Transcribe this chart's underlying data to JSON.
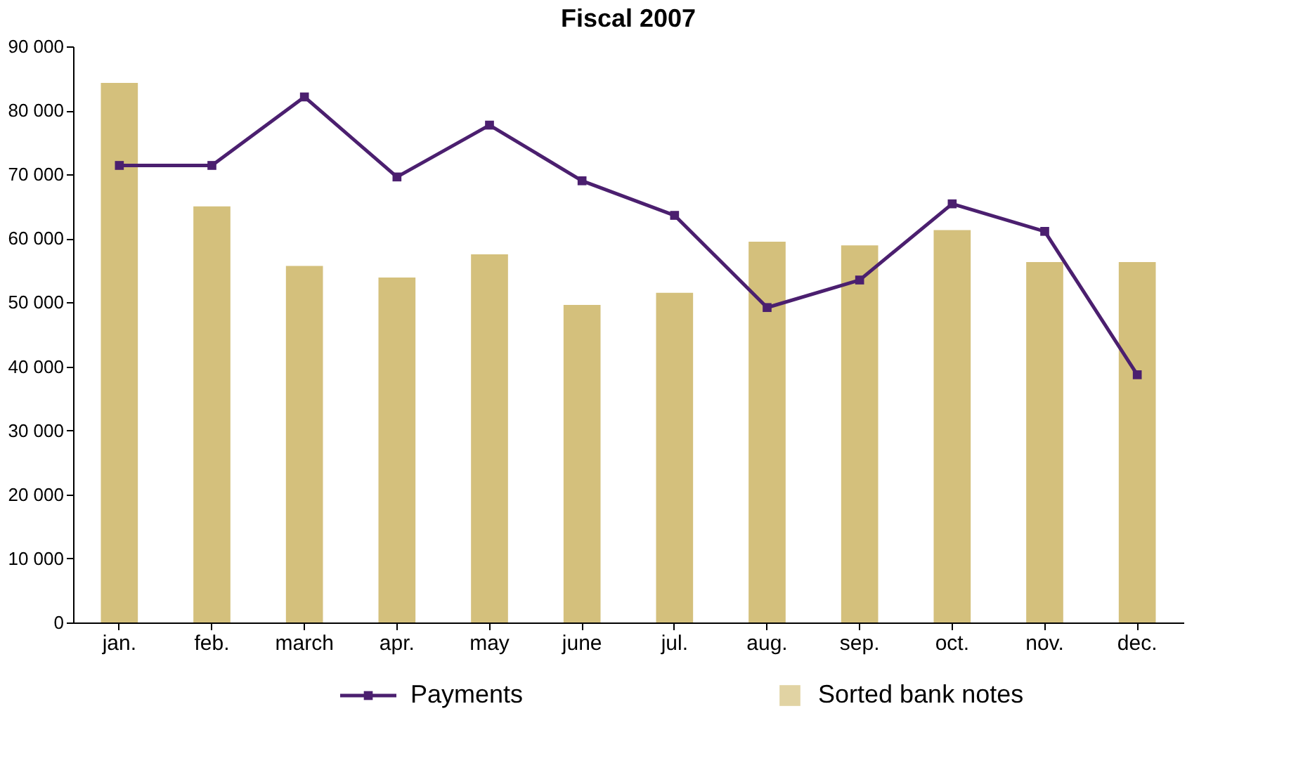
{
  "chart_data": {
    "type": "bar",
    "title": "Fiscal 2007",
    "categories": [
      "jan.",
      "feb.",
      "march",
      "apr.",
      "may",
      "june",
      "jul.",
      "aug.",
      "sep.",
      "oct.",
      "nov.",
      "dec."
    ],
    "series": [
      {
        "name": "Sorted bank notes",
        "color": "#d4c07c",
        "values": [
          84300,
          65000,
          55700,
          53900,
          57500,
          49600,
          51500,
          59500,
          58900,
          61300,
          56300,
          56300
        ]
      },
      {
        "name": "Payments",
        "type": "line",
        "color": "#4b1f6f",
        "marker": "square",
        "values": [
          71400,
          71400,
          82100,
          69600,
          77700,
          69000,
          63600,
          49200,
          53500,
          65400,
          61100,
          38700
        ]
      }
    ],
    "ylim": [
      0,
      90000
    ],
    "yticks": [
      {
        "value": 0,
        "label": "0"
      },
      {
        "value": 10000,
        "label": "10 000"
      },
      {
        "value": 20000,
        "label": "20 000"
      },
      {
        "value": 30000,
        "label": "30 000"
      },
      {
        "value": 40000,
        "label": "40 000"
      },
      {
        "value": 50000,
        "label": "50 000"
      },
      {
        "value": 60000,
        "label": "60 000"
      },
      {
        "value": 70000,
        "label": "70 000"
      },
      {
        "value": 80000,
        "label": "80 000"
      },
      {
        "value": 90000,
        "label": "90 000"
      }
    ],
    "grid": false,
    "legend": "bottom"
  }
}
